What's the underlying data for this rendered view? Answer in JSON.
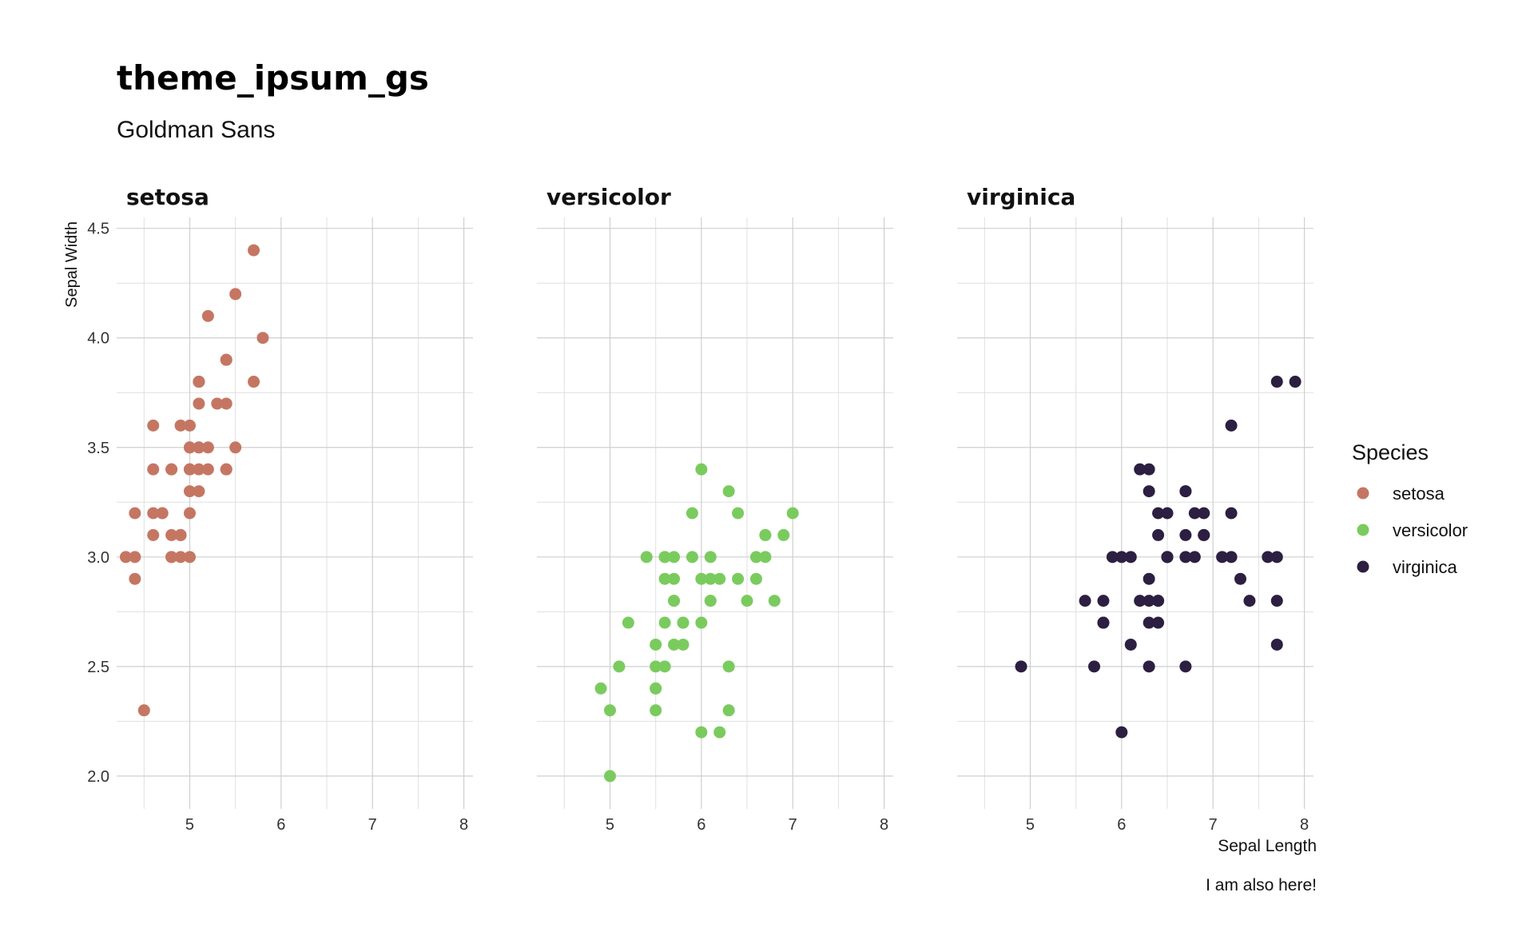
{
  "title": "theme_ipsum_gs",
  "subtitle": "Goldman Sans",
  "caption": "I am also here!",
  "colors": {
    "setosa": "#c57663",
    "versicolor": "#7acb5e",
    "virginica": "#2c1f42"
  },
  "chart_data": {
    "type": "scatter",
    "xlabel": "Sepal Length",
    "ylabel": "Sepal Width",
    "xlim": [
      4.2,
      8.1
    ],
    "ylim": [
      1.85,
      4.55
    ],
    "x_ticks": [
      "5",
      "6",
      "7",
      "8"
    ],
    "y_ticks": [
      "2.0",
      "2.5",
      "3.0",
      "3.5",
      "4.0",
      "4.5"
    ],
    "grid": true,
    "legend": {
      "title": "Species",
      "position": "right"
    },
    "facets": [
      "setosa",
      "versicolor",
      "virginica"
    ],
    "series": [
      {
        "name": "setosa",
        "points": [
          [
            5.1,
            3.5
          ],
          [
            4.9,
            3.0
          ],
          [
            4.7,
            3.2
          ],
          [
            4.6,
            3.1
          ],
          [
            5.0,
            3.6
          ],
          [
            5.4,
            3.9
          ],
          [
            4.6,
            3.4
          ],
          [
            5.0,
            3.4
          ],
          [
            4.4,
            2.9
          ],
          [
            4.9,
            3.1
          ],
          [
            5.4,
            3.7
          ],
          [
            4.8,
            3.4
          ],
          [
            4.8,
            3.0
          ],
          [
            4.3,
            3.0
          ],
          [
            5.8,
            4.0
          ],
          [
            5.7,
            4.4
          ],
          [
            5.4,
            3.9
          ],
          [
            5.1,
            3.5
          ],
          [
            5.7,
            3.8
          ],
          [
            5.1,
            3.8
          ],
          [
            5.4,
            3.4
          ],
          [
            5.1,
            3.7
          ],
          [
            4.6,
            3.6
          ],
          [
            5.1,
            3.3
          ],
          [
            4.8,
            3.4
          ],
          [
            5.0,
            3.0
          ],
          [
            5.0,
            3.4
          ],
          [
            5.2,
            3.5
          ],
          [
            5.2,
            3.4
          ],
          [
            4.7,
            3.2
          ],
          [
            4.8,
            3.1
          ],
          [
            5.4,
            3.4
          ],
          [
            5.2,
            4.1
          ],
          [
            5.5,
            4.2
          ],
          [
            4.9,
            3.1
          ],
          [
            5.0,
            3.2
          ],
          [
            5.5,
            3.5
          ],
          [
            4.9,
            3.6
          ],
          [
            4.4,
            3.0
          ],
          [
            5.1,
            3.4
          ],
          [
            5.0,
            3.5
          ],
          [
            4.5,
            2.3
          ],
          [
            4.4,
            3.2
          ],
          [
            5.0,
            3.5
          ],
          [
            5.1,
            3.8
          ],
          [
            4.8,
            3.0
          ],
          [
            5.1,
            3.8
          ],
          [
            4.6,
            3.2
          ],
          [
            5.3,
            3.7
          ],
          [
            5.0,
            3.3
          ]
        ]
      },
      {
        "name": "versicolor",
        "points": [
          [
            7.0,
            3.2
          ],
          [
            6.4,
            3.2
          ],
          [
            6.9,
            3.1
          ],
          [
            5.5,
            2.3
          ],
          [
            6.5,
            2.8
          ],
          [
            5.7,
            2.8
          ],
          [
            6.3,
            3.3
          ],
          [
            4.9,
            2.4
          ],
          [
            6.6,
            2.9
          ],
          [
            5.2,
            2.7
          ],
          [
            5.0,
            2.0
          ],
          [
            5.9,
            3.0
          ],
          [
            6.0,
            2.2
          ],
          [
            6.1,
            2.9
          ],
          [
            5.6,
            2.9
          ],
          [
            6.7,
            3.1
          ],
          [
            5.6,
            3.0
          ],
          [
            5.8,
            2.7
          ],
          [
            6.2,
            2.2
          ],
          [
            5.6,
            2.5
          ],
          [
            5.9,
            3.2
          ],
          [
            6.1,
            2.8
          ],
          [
            6.3,
            2.5
          ],
          [
            6.1,
            2.8
          ],
          [
            6.4,
            2.9
          ],
          [
            6.6,
            3.0
          ],
          [
            6.8,
            2.8
          ],
          [
            6.7,
            3.0
          ],
          [
            6.0,
            2.9
          ],
          [
            5.7,
            2.6
          ],
          [
            5.5,
            2.4
          ],
          [
            5.5,
            2.4
          ],
          [
            5.8,
            2.7
          ],
          [
            6.0,
            2.7
          ],
          [
            5.4,
            3.0
          ],
          [
            6.0,
            3.4
          ],
          [
            6.7,
            3.1
          ],
          [
            6.3,
            2.3
          ],
          [
            5.6,
            3.0
          ],
          [
            5.5,
            2.5
          ],
          [
            5.5,
            2.6
          ],
          [
            6.1,
            3.0
          ],
          [
            5.8,
            2.6
          ],
          [
            5.0,
            2.3
          ],
          [
            5.6,
            2.7
          ],
          [
            5.7,
            3.0
          ],
          [
            5.7,
            2.9
          ],
          [
            6.2,
            2.9
          ],
          [
            5.1,
            2.5
          ],
          [
            5.7,
            2.8
          ]
        ]
      },
      {
        "name": "virginica",
        "points": [
          [
            6.3,
            3.3
          ],
          [
            5.8,
            2.7
          ],
          [
            7.1,
            3.0
          ],
          [
            6.3,
            2.9
          ],
          [
            6.5,
            3.0
          ],
          [
            7.6,
            3.0
          ],
          [
            4.9,
            2.5
          ],
          [
            7.3,
            2.9
          ],
          [
            6.7,
            2.5
          ],
          [
            7.2,
            3.6
          ],
          [
            6.5,
            3.2
          ],
          [
            6.4,
            2.7
          ],
          [
            6.8,
            3.0
          ],
          [
            5.7,
            2.5
          ],
          [
            5.8,
            2.8
          ],
          [
            6.4,
            3.2
          ],
          [
            6.5,
            3.0
          ],
          [
            7.7,
            3.8
          ],
          [
            7.7,
            2.6
          ],
          [
            6.0,
            2.2
          ],
          [
            6.9,
            3.2
          ],
          [
            5.6,
            2.8
          ],
          [
            7.7,
            2.8
          ],
          [
            6.3,
            2.7
          ],
          [
            6.7,
            3.3
          ],
          [
            7.2,
            3.2
          ],
          [
            6.2,
            2.8
          ],
          [
            6.1,
            3.0
          ],
          [
            6.4,
            2.8
          ],
          [
            7.2,
            3.0
          ],
          [
            7.4,
            2.8
          ],
          [
            7.9,
            3.8
          ],
          [
            6.4,
            2.8
          ],
          [
            6.3,
            2.8
          ],
          [
            6.1,
            2.6
          ],
          [
            7.7,
            3.0
          ],
          [
            6.3,
            3.4
          ],
          [
            6.4,
            3.1
          ],
          [
            6.0,
            3.0
          ],
          [
            6.9,
            3.1
          ],
          [
            6.7,
            3.1
          ],
          [
            6.9,
            3.1
          ],
          [
            5.8,
            2.7
          ],
          [
            6.8,
            3.2
          ],
          [
            6.7,
            3.3
          ],
          [
            6.7,
            3.0
          ],
          [
            6.3,
            2.5
          ],
          [
            6.5,
            3.0
          ],
          [
            6.2,
            3.4
          ],
          [
            5.9,
            3.0
          ]
        ]
      }
    ]
  }
}
